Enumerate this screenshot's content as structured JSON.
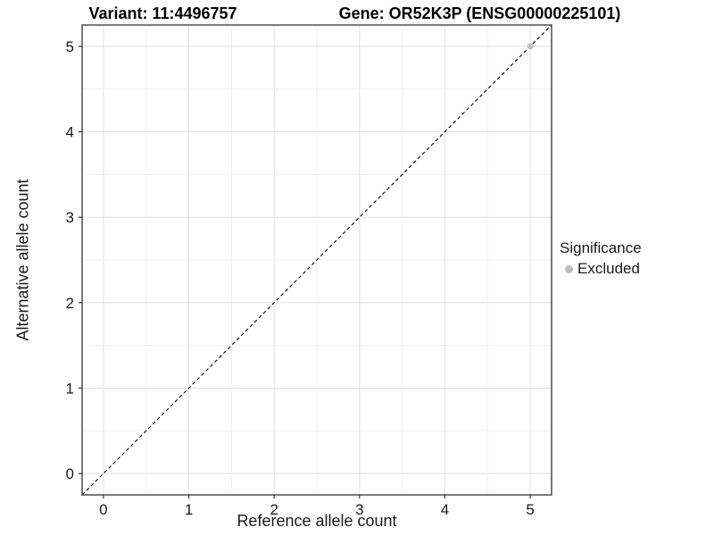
{
  "header": {
    "title_left": "Variant: 11:4496757",
    "title_right": "Gene: OR52K3P (ENSG00000225101)"
  },
  "chart_data": {
    "type": "scatter",
    "title_left": "Variant: 11:4496757",
    "title_right": "Gene: OR52K3P (ENSG00000225101)",
    "xlabel": "Reference allele count",
    "ylabel": "Alternative allele count",
    "xlim": [
      -0.25,
      5.25
    ],
    "ylim": [
      -0.25,
      5.25
    ],
    "x_ticks": [
      0,
      1,
      2,
      3,
      4,
      5
    ],
    "y_ticks": [
      0,
      1,
      2,
      3,
      4,
      5
    ],
    "grid": "on",
    "minor_grid_step": 0.5,
    "grid_major_color": "#e2e2e2",
    "grid_minor_color": "#f0f0f0",
    "panel_background": "#ffffff",
    "panel_border_color": "#333333",
    "tick_color": "#333333",
    "tick_label_color": "#1a1a1a",
    "identity_line": {
      "style": "dashed",
      "slope": 1,
      "intercept": 0,
      "color": "#000000"
    },
    "series": [
      {
        "name": "Excluded",
        "color": "#bebebe",
        "point_radius": 3.5,
        "points": [
          [
            5,
            5
          ]
        ]
      }
    ],
    "legend": {
      "position": "right",
      "title": "Significance",
      "entries": [
        {
          "label": "Excluded",
          "color": "#bebebe"
        }
      ]
    }
  }
}
